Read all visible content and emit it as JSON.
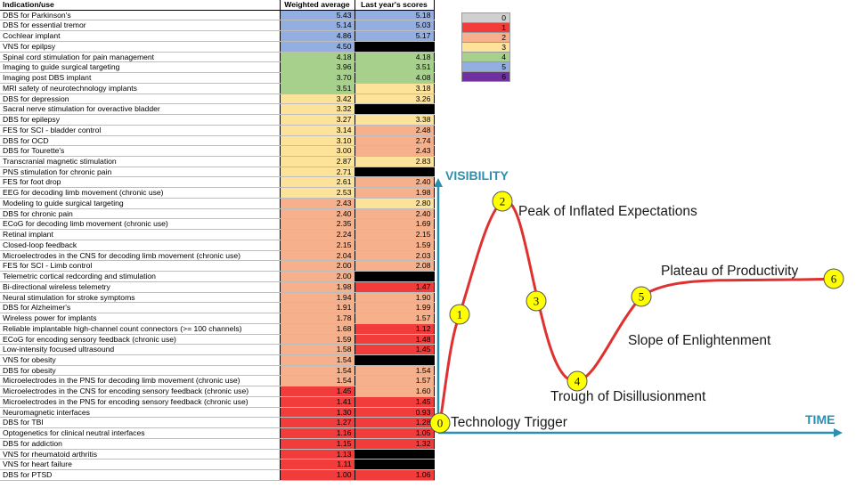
{
  "colors": {
    "0": "#d0d0d0",
    "1": "#f23b3b",
    "2": "#f6b08b",
    "3": "#fde39a",
    "4": "#a8d08d",
    "5": "#93aee0",
    "6": "#7030a0",
    "na": "#000000",
    "curve": "#e03131",
    "axis": "#2a8fb0",
    "marker": "#ffff00"
  },
  "table": {
    "headers": [
      "Indication/use",
      "Weighted average",
      "Last year's scores"
    ],
    "rows": [
      {
        "name": "DBS for Parkinson's",
        "avg": "5.43",
        "avg_cat": 5,
        "last": "5.18",
        "last_cat": 5
      },
      {
        "name": "DBS for essential tremor",
        "avg": "5.14",
        "avg_cat": 5,
        "last": "5.03",
        "last_cat": 5
      },
      {
        "name": "Cochlear implant",
        "avg": "4.86",
        "avg_cat": 5,
        "last": "5.17",
        "last_cat": 5
      },
      {
        "name": "VNS for epilpsy",
        "avg": "4.50",
        "avg_cat": 5,
        "last": "",
        "last_cat": "na"
      },
      {
        "name": "Spinal cord stimulation for pain management",
        "avg": "4.18",
        "avg_cat": 4,
        "last": "4.18",
        "last_cat": 4
      },
      {
        "name": "Imaging to guide surgical targeting",
        "avg": "3.96",
        "avg_cat": 4,
        "last": "3.51",
        "last_cat": 4
      },
      {
        "name": "Imaging post DBS implant",
        "avg": "3.70",
        "avg_cat": 4,
        "last": "4.08",
        "last_cat": 4
      },
      {
        "name": "MRI safety of neurotechnology implants",
        "avg": "3.51",
        "avg_cat": 4,
        "last": "3.18",
        "last_cat": 3
      },
      {
        "name": "DBS for depression",
        "avg": "3.42",
        "avg_cat": 3,
        "last": "3.26",
        "last_cat": 3
      },
      {
        "name": "Sacral nerve stimulation for overactive bladder",
        "avg": "3.32",
        "avg_cat": 3,
        "last": "",
        "last_cat": "na"
      },
      {
        "name": "DBS for epilepsy",
        "avg": "3.27",
        "avg_cat": 3,
        "last": "3.38",
        "last_cat": 3
      },
      {
        "name": "FES for SCI - bladder control",
        "avg": "3.14",
        "avg_cat": 3,
        "last": "2.48",
        "last_cat": 2
      },
      {
        "name": "DBS for OCD",
        "avg": "3.10",
        "avg_cat": 3,
        "last": "2.74",
        "last_cat": 2
      },
      {
        "name": "DBS for Tourette's",
        "avg": "3.00",
        "avg_cat": 3,
        "last": "2.43",
        "last_cat": 2
      },
      {
        "name": "Transcranial magnetic stimulation",
        "avg": "2.87",
        "avg_cat": 3,
        "last": "2.83",
        "last_cat": 3
      },
      {
        "name": "PNS stimulation for chronic pain",
        "avg": "2.71",
        "avg_cat": 3,
        "last": "",
        "last_cat": "na"
      },
      {
        "name": "FES for foot drop",
        "avg": "2.61",
        "avg_cat": 3,
        "last": "2.40",
        "last_cat": 2
      },
      {
        "name": "EEG for decoding limb movement (chronic use)",
        "avg": "2.53",
        "avg_cat": 3,
        "last": "1.98",
        "last_cat": 2
      },
      {
        "name": "Modeling to guide surgical targeting",
        "avg": "2.43",
        "avg_cat": 2,
        "last": "2.80",
        "last_cat": 3
      },
      {
        "name": "DBS for chronic pain",
        "avg": "2.40",
        "avg_cat": 2,
        "last": "2.40",
        "last_cat": 2
      },
      {
        "name": "ECoG for decoding limb movement (chronic use)",
        "avg": "2.35",
        "avg_cat": 2,
        "last": "1.69",
        "last_cat": 2
      },
      {
        "name": "Retinal implant",
        "avg": "2.24",
        "avg_cat": 2,
        "last": "2.15",
        "last_cat": 2
      },
      {
        "name": "Closed-loop feedback",
        "avg": "2.15",
        "avg_cat": 2,
        "last": "1.59",
        "last_cat": 2
      },
      {
        "name": "Microelectrodes in the CNS for decoding limb movement (chronic use)",
        "avg": "2.04",
        "avg_cat": 2,
        "last": "2.03",
        "last_cat": 2
      },
      {
        "name": "FES for SCI - Limb control",
        "avg": "2.00",
        "avg_cat": 2,
        "last": "2.08",
        "last_cat": 2
      },
      {
        "name": "Telemetric cortical redcording and stimulation",
        "avg": "2.00",
        "avg_cat": 2,
        "last": "",
        "last_cat": "na"
      },
      {
        "name": "Bi-directional wireless telemetry",
        "avg": "1.98",
        "avg_cat": 2,
        "last": "1.47",
        "last_cat": 1
      },
      {
        "name": "Neural stimulation for stroke symptoms",
        "avg": "1.94",
        "avg_cat": 2,
        "last": "1.90",
        "last_cat": 2
      },
      {
        "name": "DBS for Alzheimer's",
        "avg": "1.91",
        "avg_cat": 2,
        "last": "1.99",
        "last_cat": 2
      },
      {
        "name": "Wireless power for implants",
        "avg": "1.78",
        "avg_cat": 2,
        "last": "1.57",
        "last_cat": 2
      },
      {
        "name": "Reliable implantable high-channel count connectors (>= 100 channels)",
        "avg": "1.68",
        "avg_cat": 2,
        "last": "1.12",
        "last_cat": 1
      },
      {
        "name": "ECoG for encoding sensory feedback (chronic use)",
        "avg": "1.59",
        "avg_cat": 2,
        "last": "1.48",
        "last_cat": 1
      },
      {
        "name": "Low-intensity focused ultrasound",
        "avg": "1.58",
        "avg_cat": 2,
        "last": "1.45",
        "last_cat": 1
      },
      {
        "name": "VNS for obesity",
        "avg": "1.54",
        "avg_cat": 2,
        "last": "",
        "last_cat": "na"
      },
      {
        "name": "DBS for obesity",
        "avg": "1.54",
        "avg_cat": 2,
        "last": "1.54",
        "last_cat": 2
      },
      {
        "name": "Microelectrodes in the PNS for decoding limb movement (chronic use)",
        "avg": "1.54",
        "avg_cat": 2,
        "last": "1.57",
        "last_cat": 2
      },
      {
        "name": "Microelectrodes in the CNS for encoding sensory feedback (chronic use)",
        "avg": "1.45",
        "avg_cat": 1,
        "last": "1.60",
        "last_cat": 2
      },
      {
        "name": "Microelectrodes in the PNS for encoding sensory feedback (chronic use)",
        "avg": "1.41",
        "avg_cat": 1,
        "last": "1.45",
        "last_cat": 1
      },
      {
        "name": "Neuromagnetic interfaces",
        "avg": "1.30",
        "avg_cat": 1,
        "last": "0.93",
        "last_cat": 1
      },
      {
        "name": "DBS for TBI",
        "avg": "1.27",
        "avg_cat": 1,
        "last": "1.28",
        "last_cat": 1
      },
      {
        "name": "Optogenetics for clinical neutral interfaces",
        "avg": "1.16",
        "avg_cat": 1,
        "last": "1.05",
        "last_cat": 1
      },
      {
        "name": "DBS for addiction",
        "avg": "1.15",
        "avg_cat": 1,
        "last": "1.32",
        "last_cat": 1
      },
      {
        "name": "VNS for rheumatoid arthritis",
        "avg": "1.13",
        "avg_cat": 1,
        "last": "",
        "last_cat": "na"
      },
      {
        "name": "VNS for heart failure",
        "avg": "1.11",
        "avg_cat": 1,
        "last": "",
        "last_cat": "na"
      },
      {
        "name": "DBS for PTSD",
        "avg": "1.00",
        "avg_cat": 1,
        "last": "1.06",
        "last_cat": 1
      }
    ],
    "group_breaks": [
      4,
      8,
      18,
      36
    ]
  },
  "legend": [
    "0",
    "1",
    "2",
    "3",
    "4",
    "5",
    "6"
  ],
  "hype_cycle": {
    "y_axis_label": "VISIBILITY",
    "x_axis_label": "TIME",
    "stages": [
      {
        "num": "0",
        "label": "Technology Trigger"
      },
      {
        "num": "1",
        "label": ""
      },
      {
        "num": "2",
        "label": "Peak of Inflated Expectations"
      },
      {
        "num": "3",
        "label": ""
      },
      {
        "num": "4",
        "label": "Trough of Disillusionment"
      },
      {
        "num": "5",
        "label": "Slope of Enlightenment"
      },
      {
        "num": "6",
        "label": "Plateau of Productivity"
      }
    ]
  },
  "chart_data": [
    {
      "type": "table",
      "columns": [
        "Indication/use",
        "Weighted average",
        "Last year's scores"
      ],
      "note_colors": "cells colored by legend category 0-6"
    },
    {
      "type": "line",
      "xlabel": "TIME",
      "ylabel": "VISIBILITY",
      "series": [
        {
          "name": "",
          "points": [
            "0",
            "1",
            "2",
            "3",
            "4",
            "5",
            "6"
          ]
        }
      ]
    }
  ]
}
